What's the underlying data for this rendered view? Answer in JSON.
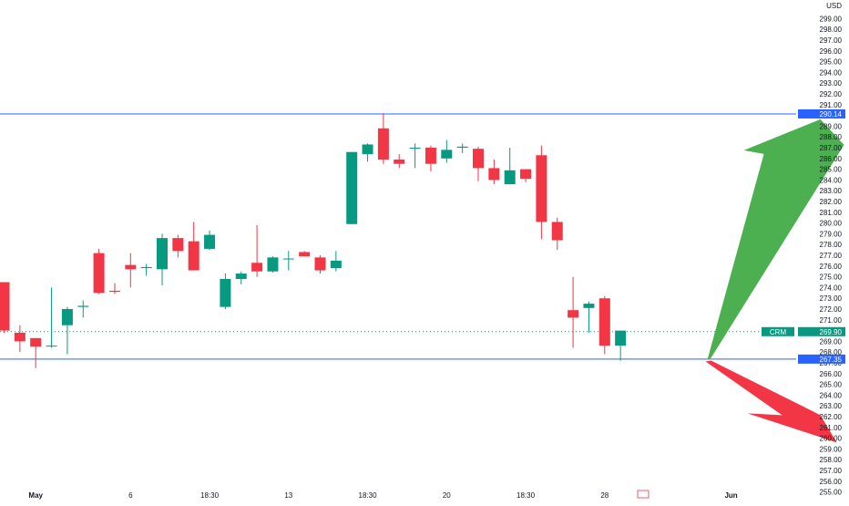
{
  "chart_data": {
    "type": "candlestick",
    "currency_label": "USD",
    "y_axis": {
      "min": 255,
      "max": 300,
      "tick_step": 1,
      "tick_labels": [
        "299.00",
        "298.00",
        "297.00",
        "296.00",
        "295.00",
        "294.00",
        "293.00",
        "292.00",
        "291.00",
        "290.00",
        "289.00",
        "288.00",
        "287.00",
        "286.00",
        "285.00",
        "284.00",
        "283.00",
        "282.00",
        "281.00",
        "280.00",
        "279.00",
        "278.00",
        "277.00",
        "276.00",
        "275.00",
        "274.00",
        "273.00",
        "272.00",
        "271.00",
        "270.00",
        "269.00",
        "268.00",
        "267.00",
        "266.00",
        "265.00",
        "264.00",
        "263.00",
        "262.00",
        "261.00",
        "260.00",
        "259.00",
        "258.00",
        "257.00",
        "256.00",
        "255.00"
      ]
    },
    "x_axis": {
      "tick_labels": [
        {
          "label": "May",
          "bar": 2,
          "bold": true
        },
        {
          "label": "6",
          "bar": 8,
          "bold": false
        },
        {
          "label": "18:30",
          "bar": 13,
          "bold": false
        },
        {
          "label": "13",
          "bar": 18,
          "bold": false
        },
        {
          "label": "18:30",
          "bar": 23,
          "bold": false
        },
        {
          "label": "20",
          "bar": 28,
          "bold": false
        },
        {
          "label": "18:30",
          "bar": 33,
          "bold": false
        },
        {
          "label": "28",
          "bar": 38,
          "bold": false
        },
        {
          "label": "Jun",
          "bar": 46,
          "bold": true
        }
      ]
    },
    "candles": [
      {
        "o": 274.5,
        "h": 274.5,
        "l": 269.8,
        "c": 270.0
      },
      {
        "o": 269.8,
        "h": 270.5,
        "l": 268.0,
        "c": 269.0
      },
      {
        "o": 269.3,
        "h": 269.3,
        "l": 266.5,
        "c": 268.5
      },
      {
        "o": 268.6,
        "h": 274.0,
        "l": 268.4,
        "c": 268.6
      },
      {
        "o": 270.5,
        "h": 272.2,
        "l": 267.8,
        "c": 272.0
      },
      {
        "o": 272.2,
        "h": 272.8,
        "l": 271.2,
        "c": 272.3
      },
      {
        "o": 277.2,
        "h": 277.6,
        "l": 273.4,
        "c": 273.5
      },
      {
        "o": 273.7,
        "h": 274.4,
        "l": 273.4,
        "c": 273.6
      },
      {
        "o": 276.1,
        "h": 277.2,
        "l": 274.0,
        "c": 275.7
      },
      {
        "o": 275.9,
        "h": 276.2,
        "l": 275.1,
        "c": 275.9
      },
      {
        "o": 275.7,
        "h": 279.0,
        "l": 274.2,
        "c": 278.6
      },
      {
        "o": 278.6,
        "h": 278.9,
        "l": 276.8,
        "c": 277.4
      },
      {
        "o": 278.3,
        "h": 280.1,
        "l": 275.6,
        "c": 275.6
      },
      {
        "o": 277.6,
        "h": 279.3,
        "l": 277.5,
        "c": 278.9
      },
      {
        "o": 272.2,
        "h": 275.3,
        "l": 272.0,
        "c": 274.8
      },
      {
        "o": 274.8,
        "h": 275.5,
        "l": 274.3,
        "c": 275.3
      },
      {
        "o": 276.3,
        "h": 279.8,
        "l": 275.0,
        "c": 275.5
      },
      {
        "o": 275.5,
        "h": 276.9,
        "l": 275.4,
        "c": 276.8
      },
      {
        "o": 276.7,
        "h": 277.4,
        "l": 275.6,
        "c": 276.7
      },
      {
        "o": 277.3,
        "h": 277.4,
        "l": 276.9,
        "c": 276.9
      },
      {
        "o": 276.8,
        "h": 277.0,
        "l": 275.3,
        "c": 275.6
      },
      {
        "o": 275.8,
        "h": 277.4,
        "l": 275.5,
        "c": 276.5
      },
      {
        "o": 279.9,
        "h": 286.6,
        "l": 279.9,
        "c": 286.6
      },
      {
        "o": 286.4,
        "h": 287.4,
        "l": 285.7,
        "c": 287.3
      },
      {
        "o": 288.8,
        "h": 290.2,
        "l": 285.5,
        "c": 285.9
      },
      {
        "o": 285.9,
        "h": 286.4,
        "l": 285.1,
        "c": 285.5
      },
      {
        "o": 287.0,
        "h": 287.4,
        "l": 285.1,
        "c": 287.0
      },
      {
        "o": 287.0,
        "h": 287.2,
        "l": 284.8,
        "c": 285.5
      },
      {
        "o": 286.0,
        "h": 287.7,
        "l": 285.6,
        "c": 286.8
      },
      {
        "o": 287.0,
        "h": 287.4,
        "l": 286.5,
        "c": 287.1
      },
      {
        "o": 286.9,
        "h": 287.1,
        "l": 283.9,
        "c": 285.1
      },
      {
        "o": 285.1,
        "h": 285.9,
        "l": 283.6,
        "c": 284.0
      },
      {
        "o": 283.6,
        "h": 287.0,
        "l": 283.6,
        "c": 284.9
      },
      {
        "o": 285.0,
        "h": 285.0,
        "l": 283.8,
        "c": 284.1
      },
      {
        "o": 286.3,
        "h": 287.2,
        "l": 278.5,
        "c": 280.1
      },
      {
        "o": 280.1,
        "h": 280.5,
        "l": 277.5,
        "c": 278.4
      },
      {
        "o": 271.9,
        "h": 275.0,
        "l": 268.4,
        "c": 271.2
      },
      {
        "o": 272.1,
        "h": 272.7,
        "l": 269.8,
        "c": 272.5
      },
      {
        "o": 273.0,
        "h": 273.2,
        "l": 267.8,
        "c": 268.6
      },
      {
        "o": 268.6,
        "h": 270.0,
        "l": 267.2,
        "c": 270.0
      }
    ],
    "levels": [
      {
        "value": 290.14,
        "label": "290.14"
      },
      {
        "value": 267.35,
        "label": "267.35"
      }
    ],
    "last_price": {
      "value": 269.9,
      "label": "269.90",
      "symbol": "CRM"
    },
    "arrows": [
      {
        "direction": "up",
        "color": "#4caf50",
        "from_bar": 44.5,
        "from_price": 267.3,
        "to_price": 289.3
      },
      {
        "direction": "down",
        "color": "#f23645",
        "from_bar": 44.5,
        "from_price": 267.3,
        "to_price": 259.6
      }
    ],
    "colors": {
      "up": "#089981",
      "down": "#f23645",
      "level_line": "#2962ff",
      "axis_text": "#131722",
      "last_price_line": "#089981",
      "label_bg": "#2962ff"
    }
  }
}
